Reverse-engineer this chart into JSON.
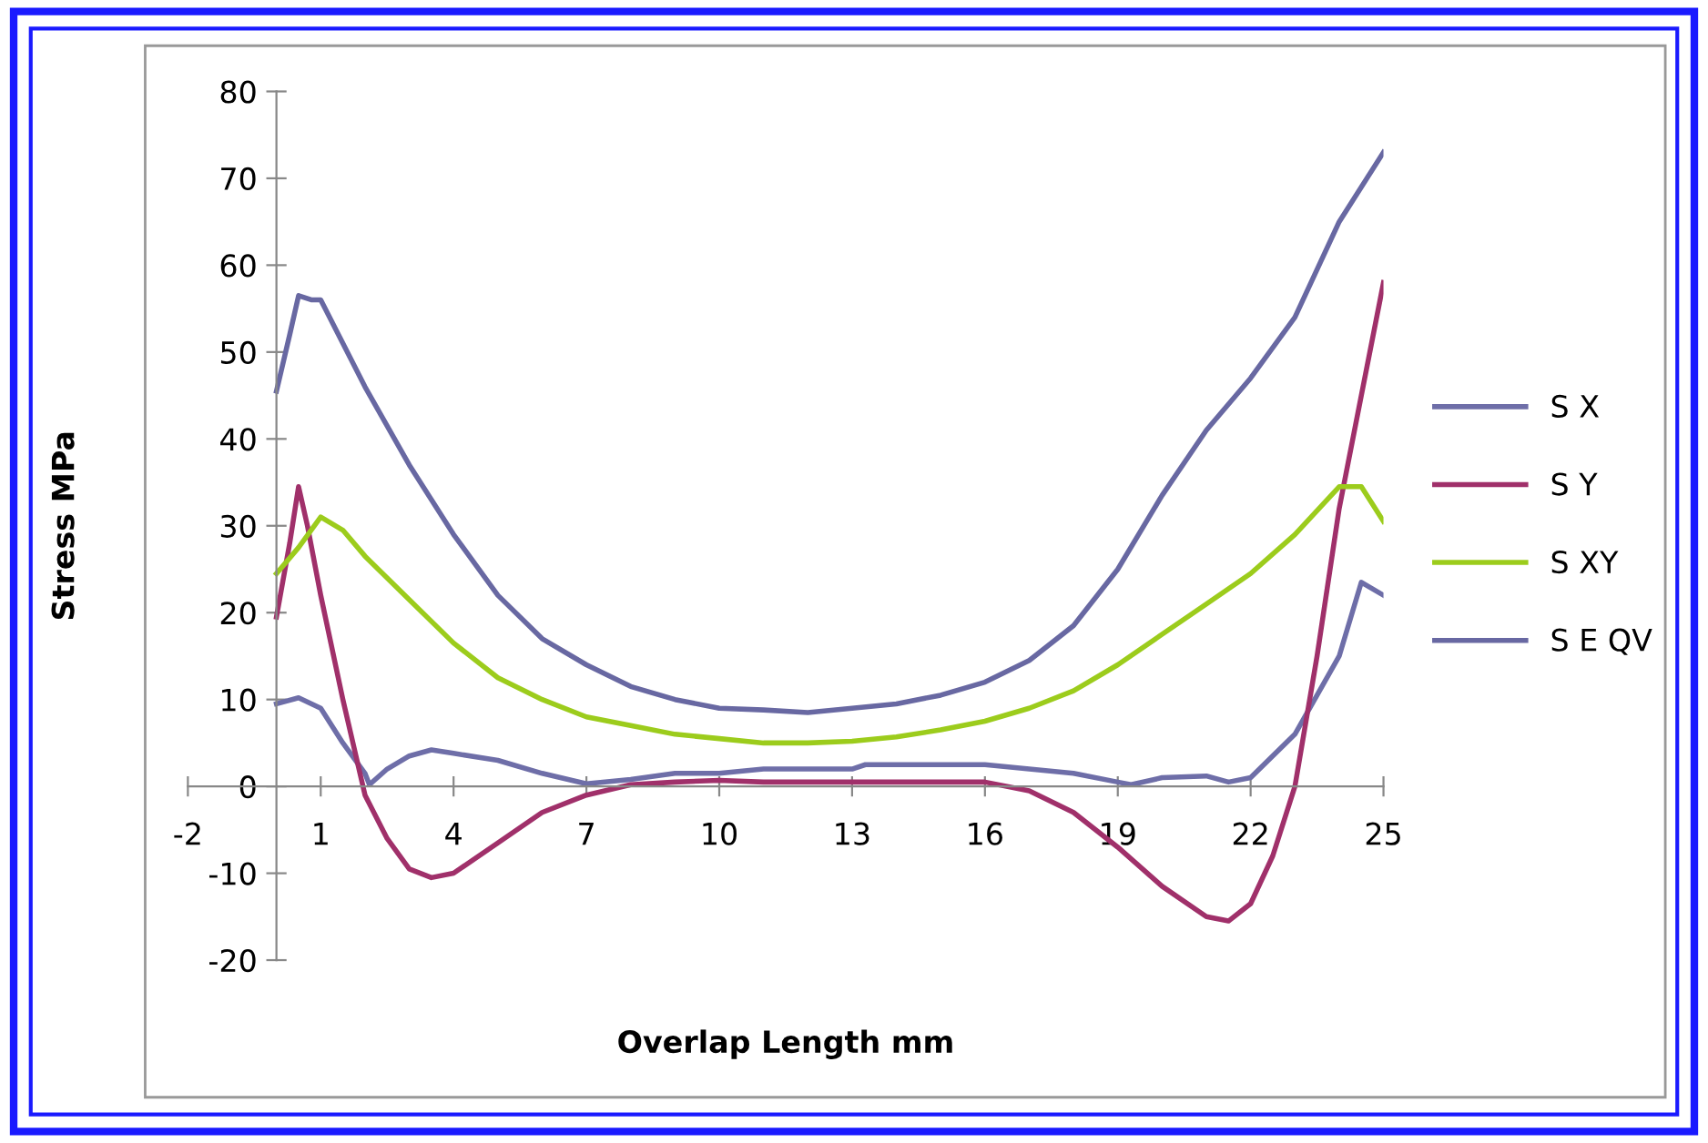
{
  "chart_data": {
    "type": "line",
    "xlabel": "Overlap Length mm",
    "ylabel": "Stress MPa",
    "xlim": [
      -2,
      25
    ],
    "xticks": [
      -2,
      1,
      4,
      7,
      10,
      13,
      16,
      19,
      22,
      25
    ],
    "ylim": [
      -20,
      80
    ],
    "yticks": [
      -20,
      -10,
      0,
      10,
      20,
      30,
      40,
      50,
      60,
      70,
      80
    ],
    "grid": false,
    "legend": "right",
    "marker": "none",
    "line_style": "solid",
    "series": [
      {
        "name": "S X",
        "color": "#6e6ea8",
        "x": [
          0,
          0.5,
          1,
          1.5,
          2,
          2.1,
          2.5,
          3,
          3.5,
          4,
          5,
          6,
          7,
          8,
          9,
          10,
          11,
          12,
          13,
          13.3,
          16,
          17,
          18,
          19,
          19.3,
          20,
          21,
          21.5,
          22,
          23,
          24,
          24.5,
          25
        ],
        "values": [
          9.5,
          10.2,
          9,
          5,
          1.5,
          0.2,
          2,
          3.5,
          4.2,
          3.8,
          3,
          1.5,
          0.3,
          0.8,
          1.5,
          1.5,
          2,
          2,
          2,
          2.5,
          2.5,
          2,
          1.5,
          0.5,
          0.2,
          1,
          1.2,
          0.5,
          1,
          6,
          15,
          23.5,
          22
        ]
      },
      {
        "name": "S Y",
        "color": "#a0306a",
        "x": [
          0,
          0.3,
          0.5,
          0.7,
          1,
          1.5,
          2,
          2.5,
          3,
          3.5,
          4,
          5,
          6,
          7,
          8,
          9,
          10,
          11,
          13,
          16,
          17,
          18,
          19,
          20,
          21,
          21.5,
          22,
          22.5,
          23,
          23.5,
          24,
          24.5,
          25
        ],
        "values": [
          19.5,
          28,
          34.5,
          30,
          22,
          10,
          -1,
          -6,
          -9.5,
          -10.5,
          -10,
          -6.5,
          -3,
          -1,
          0.2,
          0.5,
          0.7,
          0.5,
          0.5,
          0.5,
          -0.5,
          -3,
          -7,
          -11.5,
          -15,
          -15.5,
          -13.5,
          -8,
          0,
          15,
          32,
          45,
          58
        ]
      },
      {
        "name": "S XY",
        "color": "#9ccc1c",
        "x": [
          0,
          0.5,
          1,
          1.5,
          2,
          3,
          4,
          5,
          6,
          7,
          8,
          9,
          10,
          11,
          12,
          13,
          14,
          15,
          16,
          17,
          18,
          19,
          20,
          21,
          22,
          23,
          24,
          24.5,
          25
        ],
        "values": [
          24.5,
          27.5,
          31,
          29.5,
          26.5,
          21.5,
          16.5,
          12.5,
          10,
          8,
          7,
          6,
          5.5,
          5,
          5,
          5.2,
          5.7,
          6.5,
          7.5,
          9,
          11,
          14,
          17.5,
          21,
          24.5,
          29,
          34.5,
          34.5,
          30.5
        ]
      },
      {
        "name": "S E QV",
        "color": "#6868a2",
        "x": [
          0,
          0.3,
          0.5,
          0.8,
          1,
          1.5,
          2,
          3,
          4,
          5,
          6,
          7,
          8,
          9,
          10,
          11,
          12,
          13,
          14,
          15,
          16,
          17,
          18,
          19,
          20,
          21,
          22,
          23,
          24,
          25
        ],
        "values": [
          45.5,
          52,
          56.5,
          56,
          56,
          51,
          46,
          37,
          29,
          22,
          17,
          14,
          11.5,
          10,
          9,
          8.8,
          8.5,
          9,
          9.5,
          10.5,
          12,
          14.5,
          18.5,
          25,
          33.5,
          41,
          47,
          54,
          65,
          73
        ]
      }
    ]
  }
}
